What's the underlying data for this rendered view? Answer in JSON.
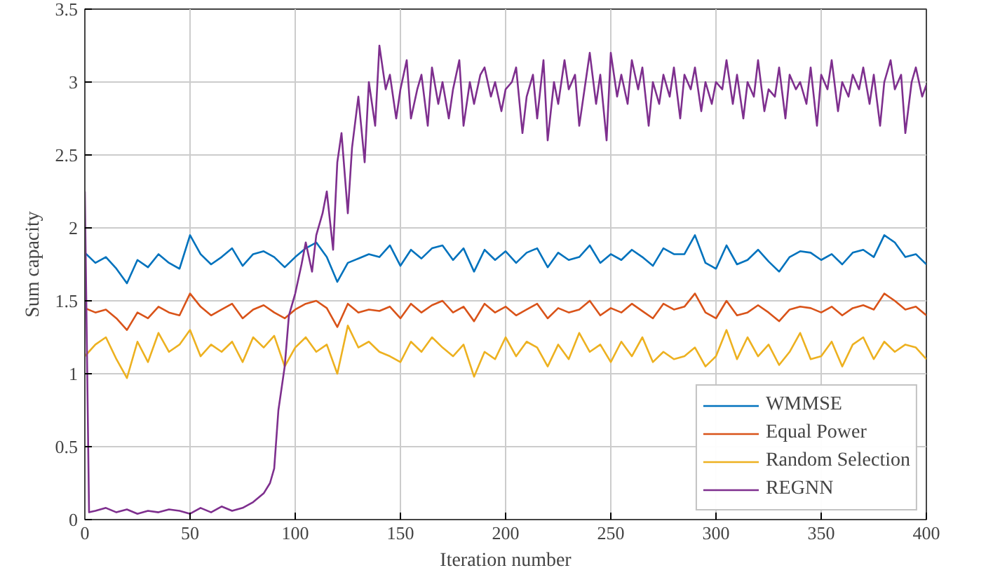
{
  "chart_data": {
    "type": "line",
    "xlabel": "Iteration number",
    "ylabel": "Sum capacity",
    "xlim": [
      0,
      400
    ],
    "ylim": [
      0,
      3.5
    ],
    "xticks": [
      0,
      50,
      100,
      150,
      200,
      250,
      300,
      350,
      400
    ],
    "yticks": [
      0,
      0.5,
      1,
      1.5,
      2,
      2.5,
      3,
      3.5
    ],
    "grid": true,
    "legend": "bottom right",
    "line_style": "solid",
    "x": [
      0,
      5,
      10,
      15,
      20,
      25,
      30,
      35,
      40,
      45,
      50,
      55,
      60,
      65,
      70,
      75,
      80,
      85,
      90,
      95,
      100,
      105,
      110,
      115,
      120,
      125,
      130,
      135,
      140,
      145,
      150,
      155,
      160,
      165,
      170,
      175,
      180,
      185,
      190,
      195,
      200,
      205,
      210,
      215,
      220,
      225,
      230,
      235,
      240,
      245,
      250,
      255,
      260,
      265,
      270,
      275,
      280,
      285,
      290,
      295,
      300,
      305,
      310,
      315,
      320,
      325,
      330,
      335,
      340,
      345,
      350,
      355,
      360,
      365,
      370,
      375,
      380,
      385,
      390,
      395,
      400
    ],
    "series": [
      {
        "name": "WMMSE",
        "color": "#0072bd",
        "values": [
          1.83,
          1.76,
          1.8,
          1.72,
          1.62,
          1.78,
          1.73,
          1.82,
          1.76,
          1.72,
          1.95,
          1.82,
          1.75,
          1.8,
          1.86,
          1.74,
          1.82,
          1.84,
          1.8,
          1.73,
          1.8,
          1.86,
          1.9,
          1.8,
          1.63,
          1.76,
          1.79,
          1.82,
          1.8,
          1.88,
          1.74,
          1.85,
          1.79,
          1.86,
          1.88,
          1.78,
          1.86,
          1.7,
          1.85,
          1.78,
          1.84,
          1.76,
          1.83,
          1.86,
          1.73,
          1.83,
          1.78,
          1.8,
          1.88,
          1.76,
          1.82,
          1.78,
          1.85,
          1.8,
          1.74,
          1.86,
          1.82,
          1.82,
          1.95,
          1.76,
          1.72,
          1.88,
          1.75,
          1.78,
          1.85,
          1.77,
          1.7,
          1.8,
          1.84,
          1.83,
          1.78,
          1.82,
          1.75,
          1.83,
          1.85,
          1.8,
          1.95,
          1.9,
          1.8,
          1.82,
          1.75
        ]
      },
      {
        "name": "Equal Power",
        "color": "#d95319",
        "values": [
          1.45,
          1.42,
          1.44,
          1.38,
          1.3,
          1.42,
          1.38,
          1.46,
          1.42,
          1.4,
          1.55,
          1.46,
          1.4,
          1.44,
          1.48,
          1.38,
          1.44,
          1.47,
          1.42,
          1.38,
          1.44,
          1.48,
          1.5,
          1.45,
          1.32,
          1.48,
          1.42,
          1.44,
          1.43,
          1.46,
          1.38,
          1.48,
          1.42,
          1.47,
          1.5,
          1.42,
          1.46,
          1.36,
          1.48,
          1.42,
          1.46,
          1.4,
          1.44,
          1.48,
          1.38,
          1.45,
          1.42,
          1.44,
          1.5,
          1.4,
          1.45,
          1.42,
          1.48,
          1.43,
          1.38,
          1.48,
          1.44,
          1.46,
          1.55,
          1.42,
          1.38,
          1.5,
          1.4,
          1.42,
          1.47,
          1.42,
          1.36,
          1.44,
          1.46,
          1.45,
          1.42,
          1.46,
          1.4,
          1.45,
          1.47,
          1.44,
          1.55,
          1.5,
          1.44,
          1.46,
          1.4
        ]
      },
      {
        "name": "Random Selection",
        "color": "#edb120",
        "values": [
          1.12,
          1.2,
          1.25,
          1.1,
          0.97,
          1.22,
          1.08,
          1.28,
          1.15,
          1.2,
          1.3,
          1.12,
          1.2,
          1.15,
          1.22,
          1.08,
          1.25,
          1.18,
          1.26,
          1.05,
          1.18,
          1.25,
          1.15,
          1.2,
          1.0,
          1.33,
          1.18,
          1.22,
          1.15,
          1.12,
          1.08,
          1.22,
          1.15,
          1.25,
          1.18,
          1.12,
          1.2,
          0.98,
          1.15,
          1.1,
          1.25,
          1.12,
          1.22,
          1.18,
          1.05,
          1.2,
          1.1,
          1.28,
          1.15,
          1.2,
          1.08,
          1.22,
          1.12,
          1.25,
          1.08,
          1.15,
          1.1,
          1.12,
          1.18,
          1.05,
          1.12,
          1.3,
          1.1,
          1.25,
          1.12,
          1.2,
          1.06,
          1.15,
          1.28,
          1.1,
          1.12,
          1.22,
          1.05,
          1.2,
          1.25,
          1.1,
          1.22,
          1.15,
          1.2,
          1.18,
          1.1
        ]
      },
      {
        "name": "REGNN",
        "color": "#7e2f8e",
        "x": [
          0,
          2,
          5,
          10,
          15,
          20,
          25,
          30,
          35,
          40,
          45,
          50,
          55,
          60,
          65,
          70,
          75,
          80,
          85,
          88,
          90,
          92,
          95,
          97,
          100,
          103,
          105,
          108,
          110,
          113,
          115,
          118,
          120,
          122,
          125,
          127,
          130,
          133,
          135,
          138,
          140,
          143,
          145,
          148,
          150,
          153,
          155,
          158,
          160,
          163,
          165,
          168,
          170,
          173,
          175,
          178,
          180,
          183,
          185,
          188,
          190,
          193,
          195,
          198,
          200,
          203,
          205,
          208,
          210,
          213,
          215,
          218,
          220,
          223,
          225,
          228,
          230,
          233,
          235,
          238,
          240,
          243,
          245,
          248,
          250,
          253,
          255,
          258,
          260,
          263,
          265,
          268,
          270,
          273,
          275,
          278,
          280,
          283,
          285,
          288,
          290,
          293,
          295,
          298,
          300,
          303,
          305,
          308,
          310,
          313,
          315,
          318,
          320,
          323,
          325,
          328,
          330,
          333,
          335,
          338,
          340,
          343,
          345,
          348,
          350,
          353,
          355,
          358,
          360,
          363,
          365,
          368,
          370,
          373,
          375,
          378,
          380,
          383,
          385,
          388,
          390,
          393,
          395,
          398,
          400
        ],
        "values": [
          2.25,
          0.05,
          0.06,
          0.08,
          0.05,
          0.07,
          0.04,
          0.06,
          0.05,
          0.07,
          0.06,
          0.04,
          0.08,
          0.05,
          0.09,
          0.06,
          0.08,
          0.12,
          0.18,
          0.25,
          0.35,
          0.75,
          1.05,
          1.4,
          1.55,
          1.75,
          1.9,
          1.7,
          1.95,
          2.1,
          2.25,
          1.85,
          2.45,
          2.65,
          2.1,
          2.55,
          2.9,
          2.45,
          3.0,
          2.7,
          3.25,
          2.95,
          3.05,
          2.75,
          2.95,
          3.15,
          2.75,
          2.95,
          3.05,
          2.7,
          3.1,
          2.85,
          3.0,
          2.75,
          2.95,
          3.15,
          2.7,
          3.0,
          2.85,
          3.05,
          3.1,
          2.9,
          3.0,
          2.8,
          2.95,
          3.0,
          3.1,
          2.65,
          2.9,
          3.05,
          2.75,
          3.15,
          2.6,
          3.0,
          2.85,
          3.15,
          2.95,
          3.05,
          2.7,
          3.0,
          3.2,
          2.85,
          3.05,
          2.6,
          3.2,
          2.9,
          3.05,
          2.85,
          3.15,
          2.95,
          3.1,
          2.7,
          3.0,
          2.85,
          3.05,
          2.9,
          3.1,
          2.75,
          3.05,
          2.95,
          3.1,
          2.8,
          3.0,
          2.85,
          3.0,
          2.95,
          3.15,
          2.85,
          3.05,
          2.75,
          3.0,
          2.9,
          3.15,
          2.8,
          2.95,
          2.9,
          3.1,
          2.75,
          3.05,
          2.95,
          3.0,
          2.85,
          3.1,
          2.7,
          3.05,
          2.95,
          3.15,
          2.8,
          3.0,
          2.9,
          3.05,
          2.95,
          3.1,
          2.85,
          3.05,
          2.7,
          3.0,
          3.15,
          2.95,
          3.05,
          2.65,
          3.0,
          3.1,
          2.9,
          2.98
        ]
      }
    ]
  }
}
